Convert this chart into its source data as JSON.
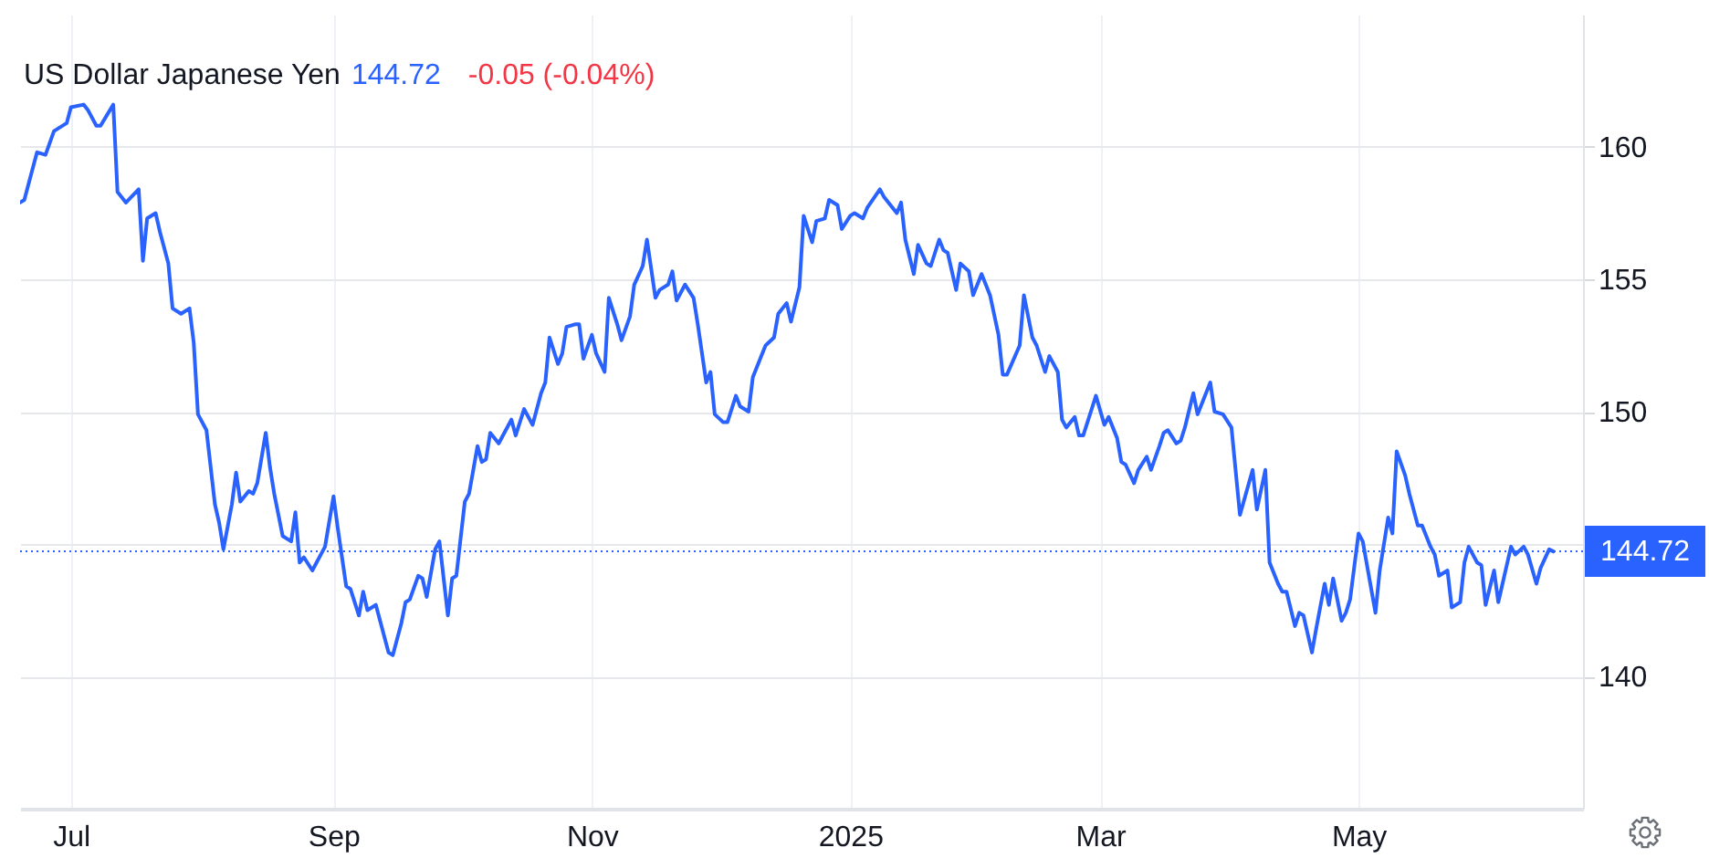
{
  "chart_data": {
    "type": "line",
    "title": "US Dollar Japanese Yen",
    "annotations": [
      "144.72",
      "-0.05 (-0.04%)"
    ],
    "x": [
      "2024-06-19",
      "2024-06-20",
      "2024-06-23",
      "2024-06-25",
      "2024-06-27",
      "2024-06-30",
      "2024-07-01",
      "2024-07-04",
      "2024-07-05",
      "2024-07-07",
      "2024-07-08",
      "2024-07-11",
      "2024-07-12",
      "2024-07-14",
      "2024-07-17",
      "2024-07-18",
      "2024-07-19",
      "2024-07-21",
      "2024-07-22",
      "2024-07-24",
      "2024-07-25",
      "2024-07-27",
      "2024-07-29",
      "2024-07-30",
      "2024-07-31",
      "2024-08-02",
      "2024-08-04",
      "2024-08-05",
      "2024-08-06",
      "2024-08-08",
      "2024-08-09",
      "2024-08-10",
      "2024-08-12",
      "2024-08-13",
      "2024-08-14",
      "2024-08-16",
      "2024-08-17",
      "2024-08-18",
      "2024-08-20",
      "2024-08-22",
      "2024-08-23",
      "2024-08-24",
      "2024-08-25",
      "2024-08-27",
      "2024-08-30",
      "2024-09-01",
      "2024-09-02",
      "2024-09-04",
      "2024-09-05",
      "2024-09-07",
      "2024-09-08",
      "2024-09-09",
      "2024-09-11",
      "2024-09-14",
      "2024-09-15",
      "2024-09-17",
      "2024-09-18",
      "2024-09-19",
      "2024-09-21",
      "2024-09-22",
      "2024-09-23",
      "2024-09-25",
      "2024-09-26",
      "2024-09-28",
      "2024-09-29",
      "2024-09-30",
      "2024-10-02",
      "2024-10-03",
      "2024-10-05",
      "2024-10-06",
      "2024-10-07",
      "2024-10-08",
      "2024-10-10",
      "2024-10-13",
      "2024-10-14",
      "2024-10-16",
      "2024-10-18",
      "2024-10-20",
      "2024-10-21",
      "2024-10-22",
      "2024-10-24",
      "2024-10-25",
      "2024-10-26",
      "2024-10-28",
      "2024-10-29",
      "2024-10-30",
      "2024-11-01",
      "2024-11-02",
      "2024-11-04",
      "2024-11-05",
      "2024-11-07",
      "2024-11-08",
      "2024-11-10",
      "2024-11-11",
      "2024-11-13",
      "2024-11-14",
      "2024-11-16",
      "2024-11-17",
      "2024-11-19",
      "2024-11-20",
      "2024-11-21",
      "2024-11-23",
      "2024-11-25",
      "2024-11-26",
      "2024-11-28",
      "2024-11-29",
      "2024-11-30",
      "2024-12-02",
      "2024-12-03",
      "2024-12-05",
      "2024-12-06",
      "2024-12-08",
      "2024-12-09",
      "2024-12-11",
      "2024-12-12",
      "2024-12-14",
      "2024-12-15",
      "2024-12-17",
      "2024-12-18",
      "2024-12-20",
      "2024-12-21",
      "2024-12-23",
      "2024-12-24",
      "2024-12-26",
      "2024-12-27",
      "2024-12-29",
      "2024-12-30",
      "2025-01-01",
      "2025-01-02",
      "2025-01-04",
      "2025-01-05",
      "2025-01-08",
      "2025-01-09",
      "2025-01-12",
      "2025-01-13",
      "2025-01-14",
      "2025-01-16",
      "2025-01-17",
      "2025-01-19",
      "2025-01-20",
      "2025-01-22",
      "2025-01-23",
      "2025-01-24",
      "2025-01-26",
      "2025-01-27",
      "2025-01-29",
      "2025-01-30",
      "2025-02-01",
      "2025-02-02",
      "2025-02-03",
      "2025-02-05",
      "2025-02-06",
      "2025-02-07",
      "2025-02-10",
      "2025-02-11",
      "2025-02-13",
      "2025-02-14",
      "2025-02-16",
      "2025-02-17",
      "2025-02-19",
      "2025-02-20",
      "2025-02-21",
      "2025-02-23",
      "2025-02-24",
      "2025-02-25",
      "2025-02-28",
      "2025-03-02",
      "2025-03-03",
      "2025-03-05",
      "2025-03-06",
      "2025-03-07",
      "2025-03-09",
      "2025-03-10",
      "2025-03-12",
      "2025-03-13",
      "2025-03-15",
      "2025-03-16",
      "2025-03-17",
      "2025-03-19",
      "2025-03-20",
      "2025-03-21",
      "2025-03-23",
      "2025-03-24",
      "2025-03-27",
      "2025-03-28",
      "2025-03-30",
      "2025-04-01",
      "2025-04-03",
      "2025-04-06",
      "2025-04-07",
      "2025-04-09",
      "2025-04-10",
      "2025-04-12",
      "2025-04-13",
      "2025-04-14",
      "2025-04-16",
      "2025-04-17",
      "2025-04-18",
      "2025-04-20",
      "2025-04-21",
      "2025-04-23",
      "2025-04-24",
      "2025-04-25",
      "2025-04-27",
      "2025-04-28",
      "2025-04-29",
      "2025-05-01",
      "2025-05-02",
      "2025-05-05",
      "2025-05-06",
      "2025-05-08",
      "2025-05-09",
      "2025-05-10",
      "2025-05-12",
      "2025-05-13",
      "2025-05-15",
      "2025-05-16",
      "2025-05-18",
      "2025-05-19",
      "2025-05-20",
      "2025-05-22",
      "2025-05-23",
      "2025-05-25",
      "2025-05-26",
      "2025-05-27",
      "2025-05-29",
      "2025-05-30",
      "2025-05-31",
      "2025-06-02",
      "2025-06-03",
      "2025-06-06",
      "2025-06-07",
      "2025-06-09",
      "2025-06-10",
      "2025-06-12",
      "2025-06-13",
      "2025-06-15",
      "2025-06-16"
    ],
    "values": [
      157.9,
      158.0,
      159.8,
      159.7,
      160.6,
      160.9,
      161.5,
      161.6,
      161.4,
      160.8,
      160.8,
      161.6,
      158.3,
      157.9,
      158.4,
      155.7,
      157.3,
      157.5,
      156.8,
      155.6,
      153.9,
      153.7,
      153.9,
      152.6,
      149.9,
      149.3,
      146.5,
      145.8,
      144.8,
      146.5,
      147.7,
      146.6,
      147.0,
      146.9,
      147.3,
      149.2,
      147.9,
      146.9,
      145.3,
      145.1,
      146.2,
      144.3,
      144.5,
      144.0,
      144.9,
      146.8,
      145.6,
      143.4,
      143.3,
      142.3,
      143.2,
      142.5,
      142.7,
      140.9,
      140.8,
      142.0,
      142.8,
      142.9,
      143.8,
      143.7,
      143.0,
      144.8,
      145.1,
      142.3,
      143.7,
      143.8,
      146.6,
      146.9,
      148.7,
      148.1,
      148.2,
      149.2,
      148.8,
      149.7,
      149.1,
      150.1,
      149.5,
      150.7,
      151.1,
      152.8,
      151.8,
      152.2,
      153.2,
      153.3,
      153.3,
      152.0,
      152.9,
      152.2,
      151.5,
      154.3,
      153.3,
      152.7,
      153.6,
      154.8,
      155.5,
      156.5,
      154.3,
      154.6,
      154.8,
      155.3,
      154.2,
      154.8,
      154.3,
      153.3,
      151.1,
      151.5,
      149.9,
      149.6,
      149.6,
      150.6,
      150.2,
      150.0,
      151.3,
      152.1,
      152.5,
      152.8,
      153.7,
      154.1,
      153.4,
      154.7,
      157.4,
      156.4,
      157.2,
      157.3,
      158.0,
      157.8,
      156.9,
      157.4,
      157.5,
      157.3,
      157.7,
      158.4,
      158.1,
      157.5,
      157.9,
      156.5,
      155.2,
      156.3,
      155.6,
      155.5,
      156.5,
      156.1,
      156.0,
      154.6,
      155.6,
      155.3,
      154.4,
      155.2,
      154.8,
      154.4,
      152.9,
      151.4,
      151.4,
      152.5,
      154.4,
      152.8,
      152.5,
      151.5,
      152.1,
      151.5,
      149.7,
      149.4,
      149.8,
      149.1,
      149.1,
      150.6,
      149.5,
      149.8,
      149.0,
      148.1,
      148.0,
      147.3,
      147.8,
      148.3,
      147.8,
      148.7,
      149.2,
      149.3,
      148.8,
      148.9,
      149.4,
      150.7,
      149.9,
      151.1,
      150.0,
      149.9,
      149.4,
      146.1,
      147.8,
      146.3,
      147.8,
      144.3,
      143.5,
      143.2,
      143.2,
      141.9,
      142.4,
      142.3,
      140.9,
      141.8,
      143.5,
      142.7,
      143.7,
      142.1,
      142.4,
      142.9,
      145.4,
      145.1,
      142.4,
      144.0,
      146.0,
      145.4,
      148.5,
      147.6,
      146.9,
      145.7,
      145.7,
      144.9,
      144.6,
      143.8,
      144.0,
      142.6,
      142.8,
      144.3,
      144.9,
      144.3,
      144.2,
      142.7,
      144.0,
      142.8,
      144.9,
      144.6,
      144.9,
      144.6,
      143.5,
      144.1,
      144.8,
      144.72
    ],
    "color": "#2962ff",
    "xlim": [
      "2024-06-19",
      "2025-06-23"
    ],
    "xticks": [
      {
        "value": "2024-07-01",
        "label": "Jul"
      },
      {
        "value": "2024-09-01",
        "label": "Sep"
      },
      {
        "value": "2024-11-01",
        "label": "Nov"
      },
      {
        "value": "2025-01-01",
        "label": "2025"
      },
      {
        "value": "2025-03-01",
        "label": "Mar"
      },
      {
        "value": "2025-05-01",
        "label": "May"
      }
    ],
    "ylim": [
      135,
      165
    ],
    "yticks": [
      140,
      {
        "value": 145,
        "label": null
      },
      150,
      155,
      160
    ],
    "grid": true,
    "ref_lines": [
      {
        "axis": "y",
        "value": 144.72,
        "label": "144.72",
        "color": "#2962ff",
        "line_style": "dotted"
      }
    ]
  }
}
